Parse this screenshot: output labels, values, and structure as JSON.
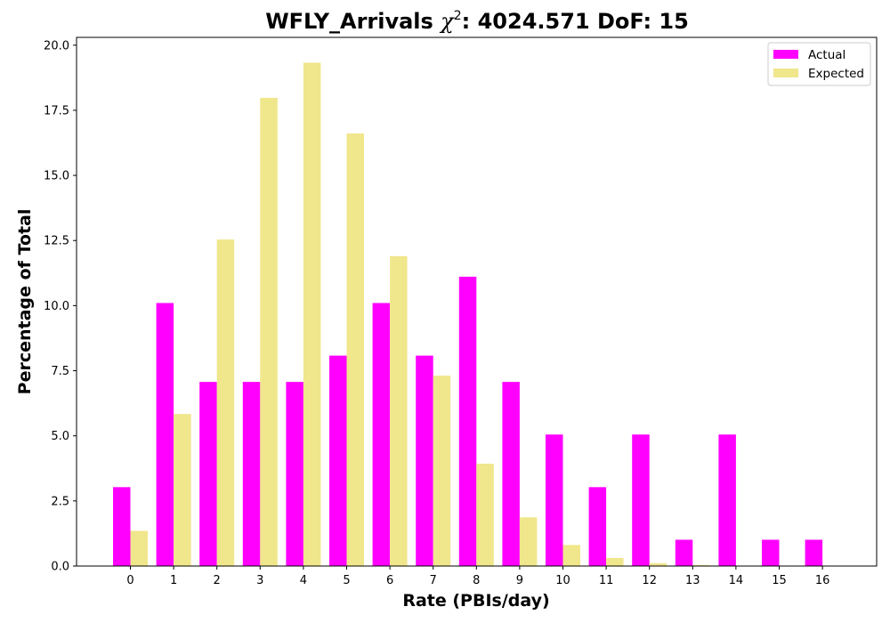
{
  "chart_data": {
    "type": "bar",
    "title_prefix": "WFLY_Arrivals ",
    "title_chi": "χ",
    "title_sup": "2",
    "title_suffix": ": 4024.571 DoF: 15",
    "xlabel": "Rate (PBIs/day)",
    "ylabel": "Percentage of Total",
    "categories": [
      "0",
      "1",
      "2",
      "3",
      "4",
      "5",
      "6",
      "7",
      "8",
      "9",
      "10",
      "11",
      "12",
      "13",
      "14",
      "15",
      "16"
    ],
    "ylim": [
      0,
      20.3
    ],
    "yticks": [
      "0.0",
      "2.5",
      "5.0",
      "7.5",
      "10.0",
      "12.5",
      "15.0",
      "17.5",
      "20.0"
    ],
    "ytick_values": [
      0,
      2.5,
      5,
      7.5,
      10,
      12.5,
      15,
      17.5,
      20
    ],
    "legend_position": "top-right",
    "grid": false,
    "series": [
      {
        "name": "Actual",
        "color": "#ff00ff",
        "values": [
          3.03,
          10.1,
          7.07,
          7.07,
          7.07,
          8.08,
          10.1,
          8.08,
          11.11,
          7.07,
          5.05,
          3.03,
          5.05,
          1.01,
          5.05,
          1.01,
          1.01
        ]
      },
      {
        "name": "Expected",
        "color": "#f0e68c",
        "values": [
          1.35,
          5.84,
          12.54,
          17.98,
          19.33,
          16.61,
          11.9,
          7.31,
          3.93,
          1.87,
          0.81,
          0.31,
          0.11,
          0.04,
          0.01,
          0.0,
          0.0
        ]
      }
    ]
  }
}
